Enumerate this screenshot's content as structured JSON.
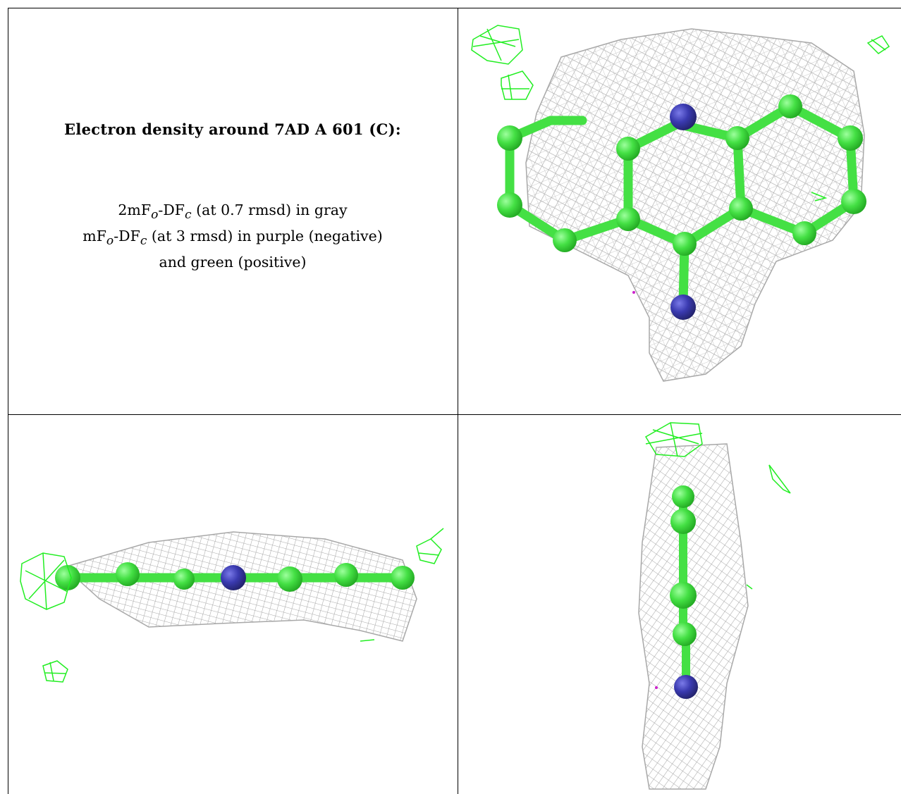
{
  "title": "Electron density around 7AD A 601 (C):",
  "legend": {
    "line1": {
      "p1": "2mF",
      "s1": "o",
      "p2": "-DF",
      "s2": "c",
      "p3": " (at 0.7 rmsd) in gray"
    },
    "line2": {
      "p1": "mF",
      "s1": "o",
      "p2": "-DF",
      "s2": "c",
      "p3": " (at 3 rmsd) in purple (negative)"
    },
    "line3": "and green (positive)"
  },
  "colors": {
    "density_mesh": "#a8a8a8",
    "carbon_atoms": "#44e044",
    "nitrogen_atoms": "#3a3ab0",
    "positive_difference": "#22ee22",
    "negative_difference": "#cc22cc"
  },
  "panels": [
    {
      "name": "view-top"
    },
    {
      "name": "view-side"
    },
    {
      "name": "view-edge"
    }
  ]
}
